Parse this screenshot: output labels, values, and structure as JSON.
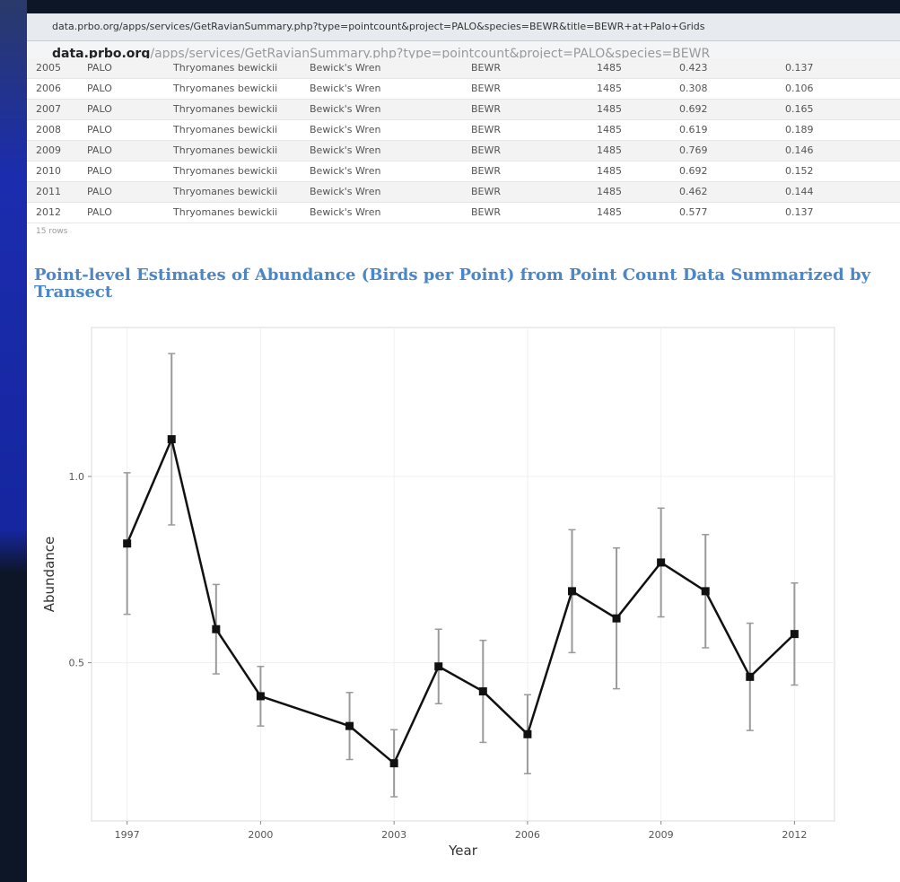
{
  "browser": {
    "tab_title": "data.prbo.org/apps/services/GetRavianSummary.php?type=pointcount&project=PALO&species=BEWR&title=BEWR+at+Palo+Grids",
    "address_domain": "data.prbo.org",
    "address_path": "/apps/services/GetRavianSummary.php?type=pointcount&project=PALO&species=BEWR"
  },
  "table": {
    "rows": [
      [
        "2005",
        "PALO",
        "Thryomanes bewickii",
        "Bewick's Wren",
        "BEWR",
        "1485",
        "0.423",
        "0.137"
      ],
      [
        "2006",
        "PALO",
        "Thryomanes bewickii",
        "Bewick's Wren",
        "BEWR",
        "1485",
        "0.308",
        "0.106"
      ],
      [
        "2007",
        "PALO",
        "Thryomanes bewickii",
        "Bewick's Wren",
        "BEWR",
        "1485",
        "0.692",
        "0.165"
      ],
      [
        "2008",
        "PALO",
        "Thryomanes bewickii",
        "Bewick's Wren",
        "BEWR",
        "1485",
        "0.619",
        "0.189"
      ],
      [
        "2009",
        "PALO",
        "Thryomanes bewickii",
        "Bewick's Wren",
        "BEWR",
        "1485",
        "0.769",
        "0.146"
      ],
      [
        "2010",
        "PALO",
        "Thryomanes bewickii",
        "Bewick's Wren",
        "BEWR",
        "1485",
        "0.692",
        "0.152"
      ],
      [
        "2011",
        "PALO",
        "Thryomanes bewickii",
        "Bewick's Wren",
        "BEWR",
        "1485",
        "0.462",
        "0.144"
      ],
      [
        "2012",
        "PALO",
        "Thryomanes bewickii",
        "Bewick's Wren",
        "BEWR",
        "1485",
        "0.577",
        "0.137"
      ]
    ],
    "footer": "15 rows"
  },
  "chart_data": {
    "type": "line",
    "title": "Point-level Estimates of Abundance (Birds per Point) from Point Count Data Summarized by Transect",
    "x_label": "Year",
    "y_label": "Abundance",
    "x": [
      1997,
      1998,
      1999,
      2000,
      2002,
      2003,
      2004,
      2005,
      2006,
      2007,
      2008,
      2009,
      2010,
      2011,
      2012
    ],
    "values": [
      0.82,
      1.1,
      0.59,
      0.41,
      0.33,
      0.23,
      0.49,
      0.423,
      0.308,
      0.692,
      0.619,
      0.769,
      0.692,
      0.462,
      0.577
    ],
    "errors": [
      0.19,
      0.23,
      0.12,
      0.08,
      0.09,
      0.09,
      0.1,
      0.137,
      0.106,
      0.165,
      0.189,
      0.146,
      0.152,
      0.144,
      0.137
    ],
    "color": "#111111",
    "error_color": "#9a9a9a",
    "xlim": [
      1996.2,
      2012.9
    ],
    "xticks": [
      1997,
      2000,
      2003,
      2006,
      2009,
      2012
    ],
    "ylim": [
      0.075,
      1.4
    ],
    "yticks": [
      {
        "value": 0.5,
        "label": "0.5"
      },
      {
        "value": 1.0,
        "label": "1.0"
      }
    ],
    "grid": true
  }
}
